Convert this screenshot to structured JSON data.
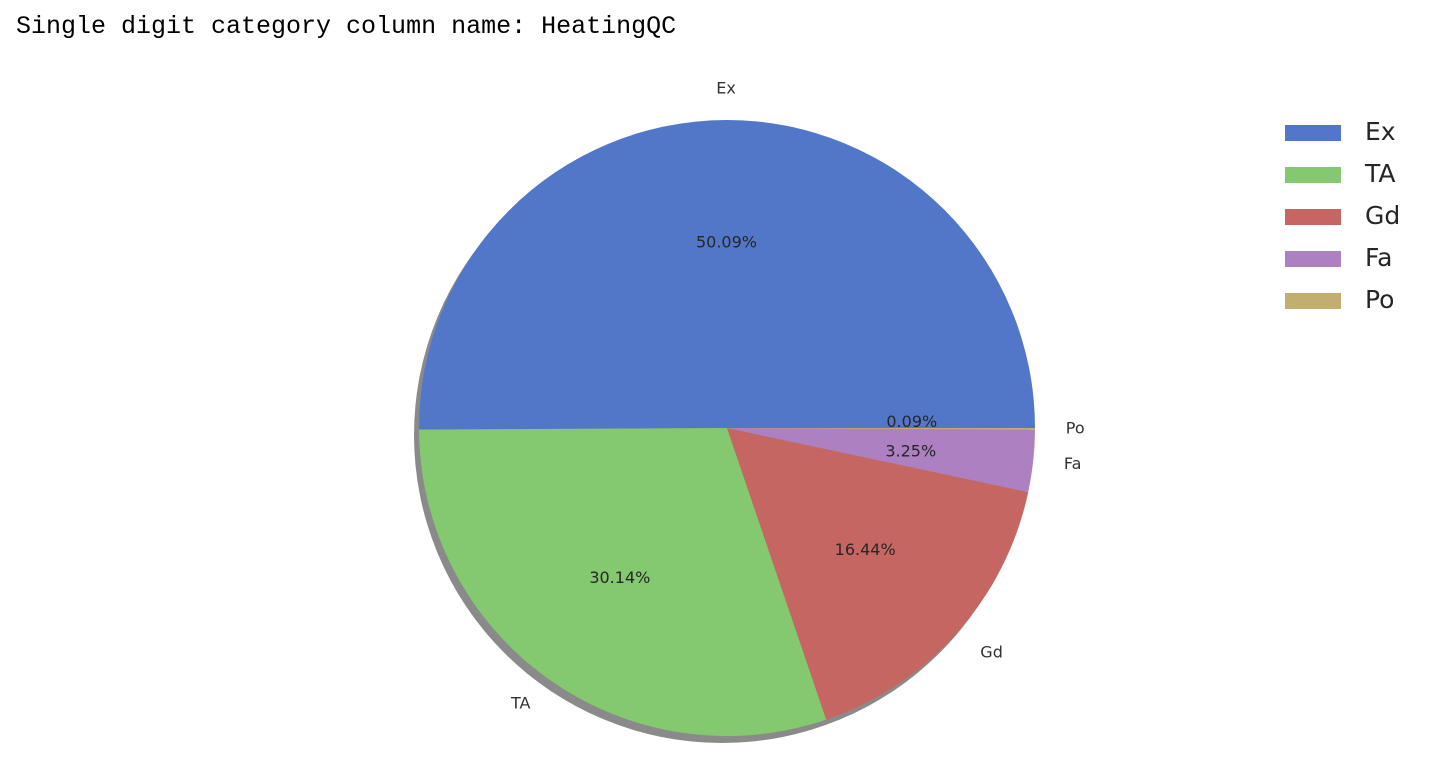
{
  "output": {
    "text": "Single digit category column name: HeatingQC"
  },
  "chart_data": {
    "type": "pie",
    "categories": [
      "Ex",
      "TA",
      "Gd",
      "Fa",
      "Po"
    ],
    "values": [
      50.09,
      30.14,
      16.44,
      3.25,
      0.09
    ],
    "value_labels": [
      "50.09%",
      "30.14%",
      "16.44%",
      "3.25%",
      "0.09%"
    ],
    "colors": [
      "#5377c8",
      "#84c870",
      "#c66662",
      "#ad80c2",
      "#c3ae72"
    ],
    "start_angle_deg": 0,
    "direction": "counterclockwise",
    "shadow": true,
    "legend": {
      "placement": "top-right",
      "entries": [
        "Ex",
        "TA",
        "Gd",
        "Fa",
        "Po"
      ]
    }
  }
}
